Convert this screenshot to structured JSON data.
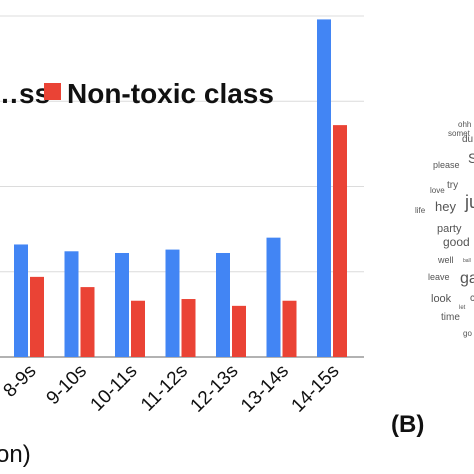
{
  "chart_data": {
    "type": "bar",
    "categories": [
      "8-9s",
      "9-10s",
      "10-11s",
      "11-12s",
      "12-13s",
      "13-14s",
      "14-15s"
    ],
    "series": [
      {
        "name": "…ss",
        "color": "#4285f4",
        "values": [
          33,
          31,
          30.5,
          31.5,
          30.5,
          35,
          99
        ]
      },
      {
        "name": "Non-toxic class",
        "color": "#ea4335",
        "values": [
          23.5,
          20.5,
          16.5,
          17,
          15,
          16.5,
          68
        ]
      }
    ],
    "xlabel": "on)",
    "ylim": [
      0,
      100
    ],
    "grid": true,
    "legend_position": "top"
  },
  "panel_label": "(B)",
  "word_cloud": {
    "words": [
      {
        "text": "somet",
        "size": 8
      },
      {
        "text": "ohh",
        "size": 8
      },
      {
        "text": "du",
        "size": 10
      },
      {
        "text": "please",
        "size": 9
      },
      {
        "text": "S",
        "size": 14
      },
      {
        "text": "try",
        "size": 10
      },
      {
        "text": "love",
        "size": 8
      },
      {
        "text": "life",
        "size": 8
      },
      {
        "text": "hey",
        "size": 13
      },
      {
        "text": "ju",
        "size": 18
      },
      {
        "text": "party",
        "size": 11
      },
      {
        "text": "good",
        "size": 12
      },
      {
        "text": "well",
        "size": 9
      },
      {
        "text": "ball",
        "size": 5
      },
      {
        "text": "leave",
        "size": 9
      },
      {
        "text": "ga",
        "size": 16
      },
      {
        "text": "look",
        "size": 11
      },
      {
        "text": "let",
        "size": 6
      },
      {
        "text": "c",
        "size": 10
      },
      {
        "text": "time",
        "size": 10
      },
      {
        "text": "go",
        "size": 8
      }
    ]
  }
}
